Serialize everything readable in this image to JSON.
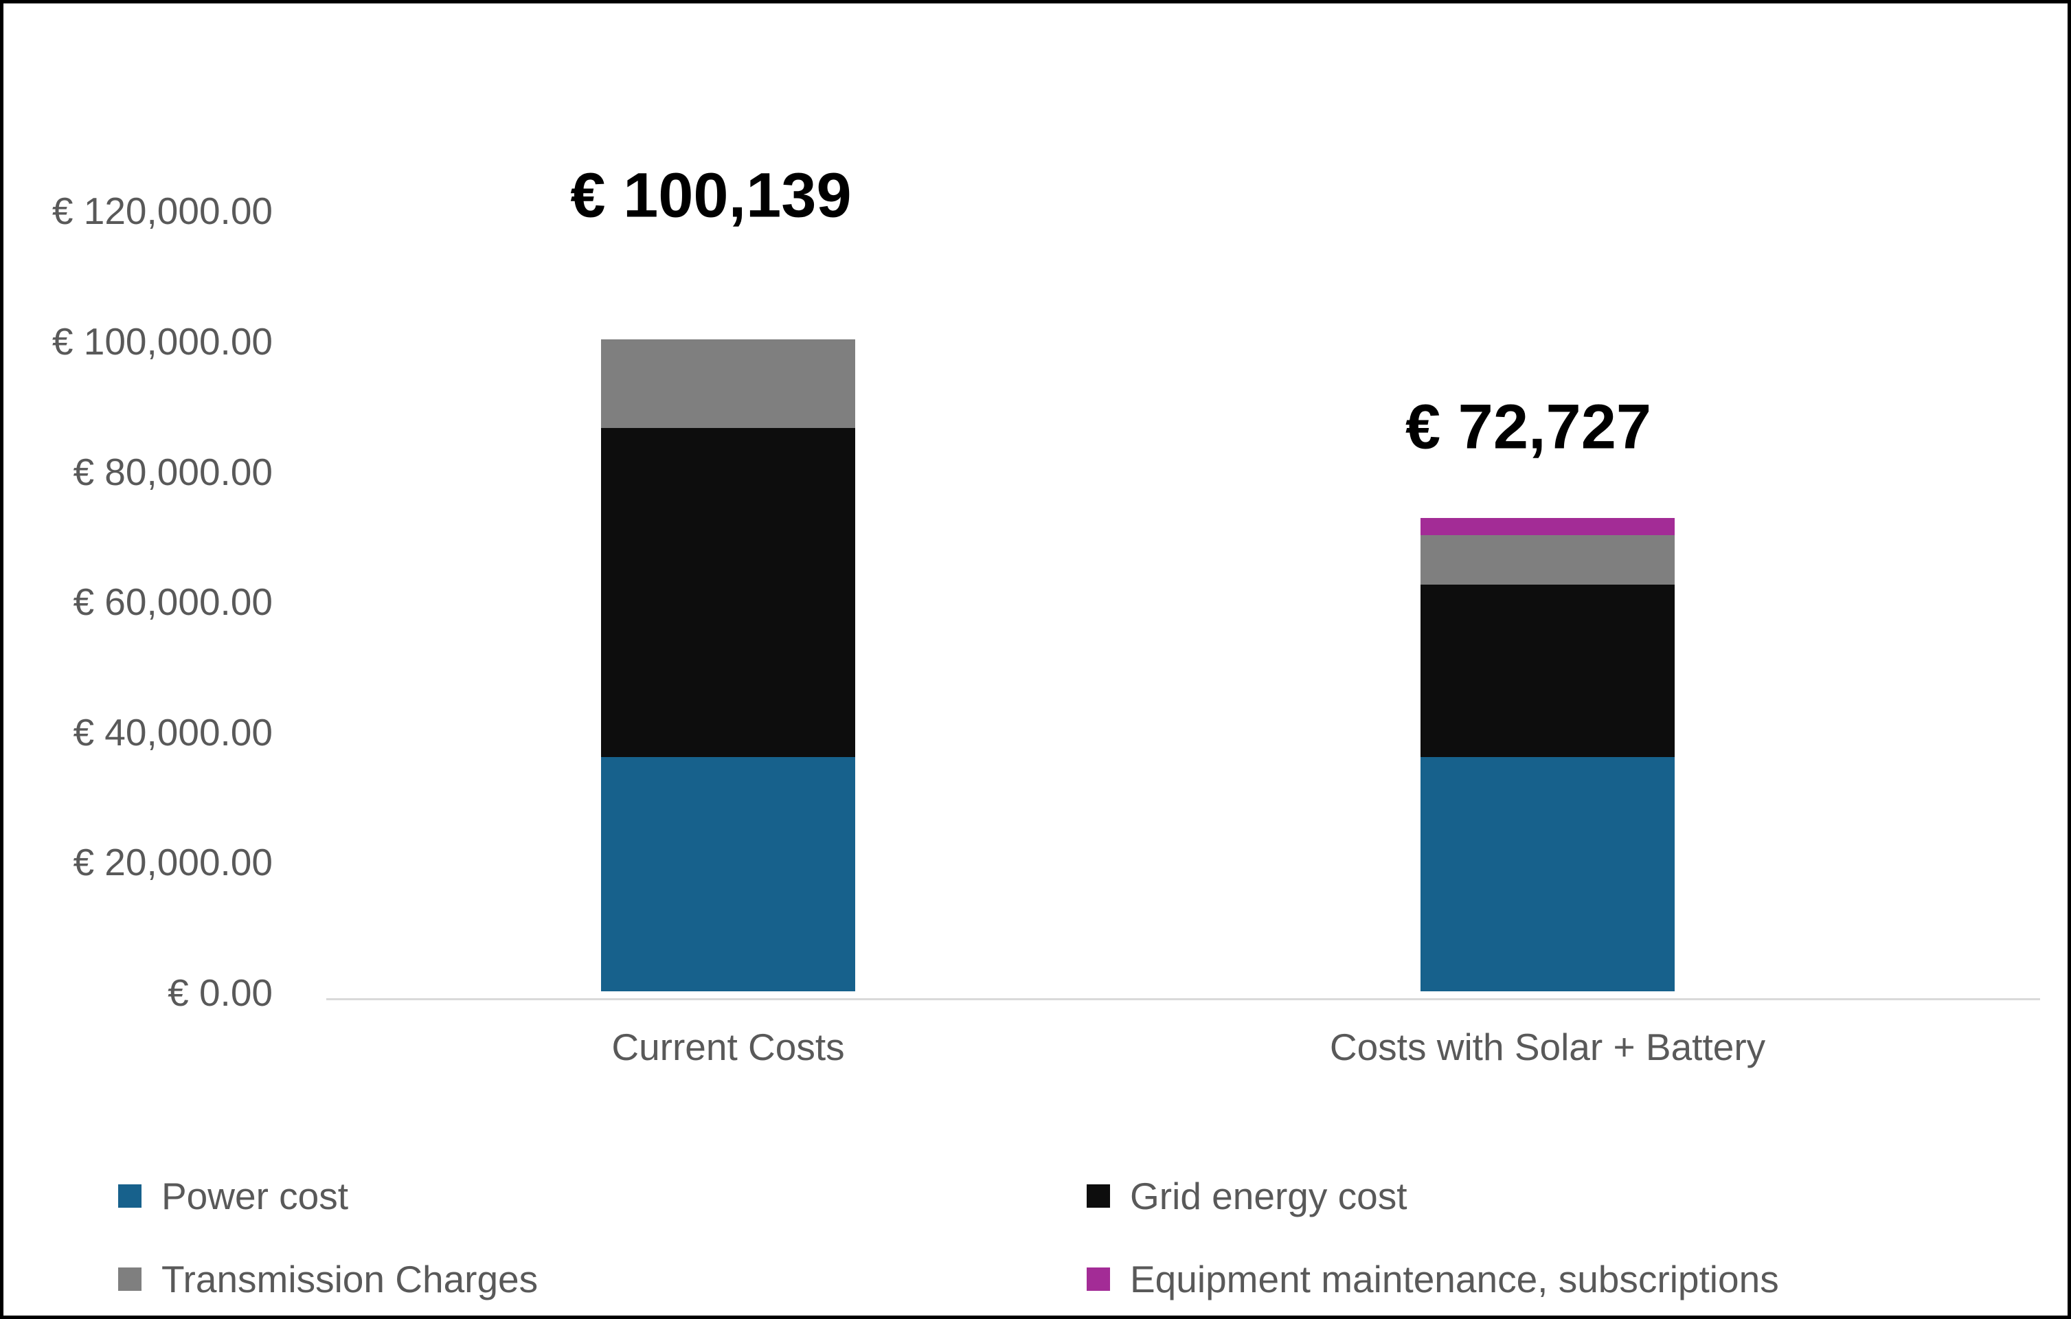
{
  "chart_data": {
    "type": "bar",
    "stacked": true,
    "categories": [
      "Current Costs",
      "Costs with Solar + Battery"
    ],
    "series": [
      {
        "name": "Power cost",
        "color": "#17618C",
        "values": [
          36000,
          36000
        ]
      },
      {
        "name": "Grid energy cost",
        "color": "#0D0D0D",
        "values": [
          50500,
          26500
        ]
      },
      {
        "name": "Transmission Charges",
        "color": "#7F7F7F",
        "values": [
          13639,
          7600
        ]
      },
      {
        "name": "Equipment maintenance, subscriptions",
        "color": "#A32C96",
        "values": [
          0,
          2627
        ]
      }
    ],
    "totals": [
      100139,
      72727
    ],
    "total_labels": [
      "€ 100,139",
      "€ 72,727"
    ],
    "y_axis": {
      "range": [
        0,
        120000
      ],
      "ticks": [
        {
          "value": 0,
          "label": "€ 0.00"
        },
        {
          "value": 20000,
          "label": "€ 20,000.00"
        },
        {
          "value": 40000,
          "label": "€ 40,000.00"
        },
        {
          "value": 60000,
          "label": "€ 60,000.00"
        },
        {
          "value": 80000,
          "label": "€ 80,000.00"
        },
        {
          "value": 100000,
          "label": "€ 100,000.00"
        },
        {
          "value": 120000,
          "label": "€ 120,000.00"
        }
      ]
    },
    "legend_position": "bottom",
    "gridlines": false,
    "styles": {
      "background": "#FFFFFF",
      "border_color": "#000000",
      "axis_text_color": "#595959",
      "category_text_color": "#595959",
      "legend_text_color": "#595959",
      "data_label_color": "#000000",
      "axis_line_color": "#D9D9D9"
    }
  }
}
